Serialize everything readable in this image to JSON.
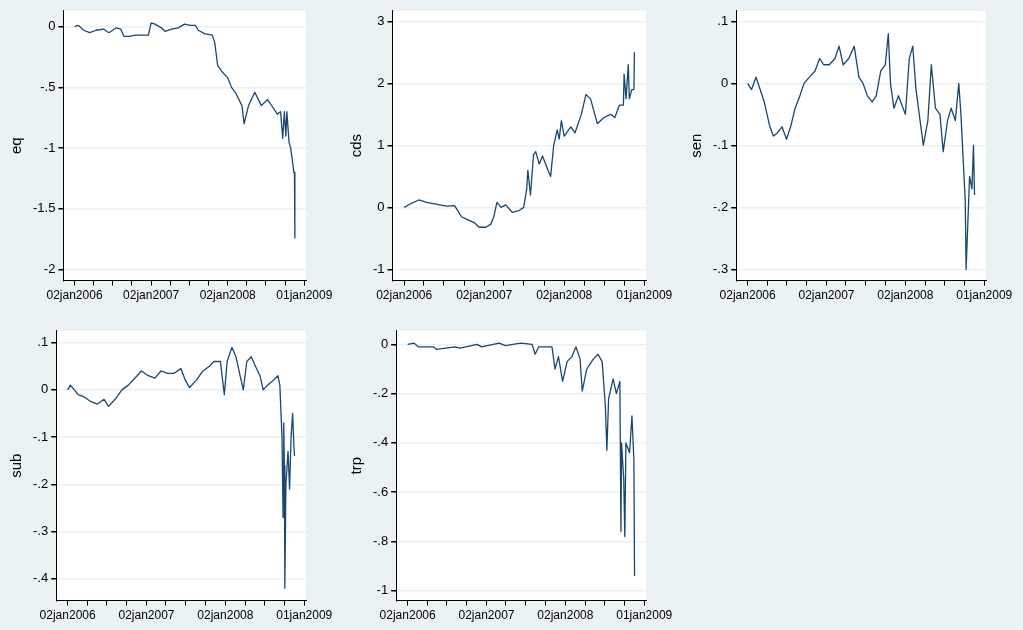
{
  "chart_data": [
    {
      "type": "line",
      "ylabel": "eq",
      "color": "#1a476f",
      "grid": "y",
      "xlim": [
        "2005-11-10",
        "2009-01-09"
      ],
      "xticks": [
        {
          "value": "2006-01-02",
          "label": "02jan2006"
        },
        {
          "value": "2006-04-02",
          "label": null
        },
        {
          "value": "2006-07-02",
          "label": null
        },
        {
          "value": "2006-10-02",
          "label": null
        },
        {
          "value": "2007-01-02",
          "label": "02jan2007"
        },
        {
          "value": "2007-04-02",
          "label": null
        },
        {
          "value": "2007-07-02",
          "label": null
        },
        {
          "value": "2007-10-02",
          "label": null
        },
        {
          "value": "2008-01-02",
          "label": "02jan2008"
        },
        {
          "value": "2008-04-02",
          "label": null
        },
        {
          "value": "2008-07-02",
          "label": null
        },
        {
          "value": "2008-10-02",
          "label": null
        },
        {
          "value": "2009-01-01",
          "label": "01jan2009"
        }
      ],
      "ylim": [
        -2.09,
        0.13
      ],
      "yticks": [
        -2,
        {
          "value": -1.5,
          "label": "-1.5"
        },
        -1,
        {
          "value": -0.5,
          "label": "-.5"
        },
        0
      ],
      "x": [
        "2006-01-02",
        "2006-01-20",
        "2006-02-15",
        "2006-03-15",
        "2006-04-15",
        "2006-05-20",
        "2006-06-15",
        "2006-07-20",
        "2006-08-10",
        "2006-08-25",
        "2006-09-20",
        "2006-10-20",
        "2006-11-20",
        "2006-12-20",
        "2007-01-02",
        "2007-01-20",
        "2007-02-20",
        "2007-03-10",
        "2007-04-10",
        "2007-05-10",
        "2007-06-10",
        "2007-07-10",
        "2007-08-01",
        "2007-08-15",
        "2007-09-15",
        "2007-10-20",
        "2007-11-01",
        "2007-11-15",
        "2007-12-10",
        "2008-01-02",
        "2008-01-20",
        "2008-02-10",
        "2008-03-10",
        "2008-03-20",
        "2008-04-10",
        "2008-05-10",
        "2008-06-10",
        "2008-07-10",
        "2008-08-10",
        "2008-08-25",
        "2008-09-10",
        "2008-09-20",
        "2008-09-28",
        "2008-10-05",
        "2008-10-10",
        "2008-10-20",
        "2008-10-28",
        "2008-11-05",
        "2008-11-12",
        "2008-11-15",
        "2008-11-17"
      ],
      "values": [
        0,
        0.01,
        -0.03,
        -0.05,
        -0.03,
        -0.02,
        -0.05,
        -0.01,
        -0.02,
        -0.08,
        -0.08,
        -0.07,
        -0.07,
        -0.07,
        0.03,
        0.02,
        -0.01,
        -0.04,
        -0.02,
        -0.01,
        0.02,
        0.01,
        0.01,
        -0.03,
        -0.06,
        -0.07,
        -0.13,
        -0.32,
        -0.38,
        -0.42,
        -0.5,
        -0.55,
        -0.65,
        -0.8,
        -0.65,
        -0.54,
        -0.65,
        -0.6,
        -0.68,
        -0.72,
        -0.7,
        -0.92,
        -0.7,
        -0.9,
        -0.7,
        -0.95,
        -1.0,
        -1.1,
        -1.2,
        -1.2,
        -1.74
      ]
    },
    {
      "type": "line",
      "ylabel": "cds",
      "color": "#1a476f",
      "grid": "y",
      "xlim": [
        "2005-11-10",
        "2009-01-09"
      ],
      "xticks": [
        {
          "value": "2006-01-02",
          "label": "02jan2006"
        },
        {
          "value": "2006-04-02",
          "label": null
        },
        {
          "value": "2006-07-02",
          "label": null
        },
        {
          "value": "2006-10-02",
          "label": null
        },
        {
          "value": "2007-01-02",
          "label": "02jan2007"
        },
        {
          "value": "2007-04-02",
          "label": null
        },
        {
          "value": "2007-07-02",
          "label": null
        },
        {
          "value": "2007-10-02",
          "label": null
        },
        {
          "value": "2008-01-02",
          "label": "02jan2008"
        },
        {
          "value": "2008-04-02",
          "label": null
        },
        {
          "value": "2008-07-02",
          "label": null
        },
        {
          "value": "2008-10-02",
          "label": null
        },
        {
          "value": "2009-01-01",
          "label": "01jan2009"
        }
      ],
      "ylim": [
        -1.18,
        3.17
      ],
      "yticks": [
        -1,
        0,
        1,
        2,
        3
      ],
      "x": [
        "2006-01-02",
        "2006-02-01",
        "2006-03-10",
        "2006-04-15",
        "2006-06-01",
        "2006-07-15",
        "2006-08-20",
        "2006-09-20",
        "2006-10-20",
        "2006-11-20",
        "2006-12-10",
        "2007-01-10",
        "2007-02-01",
        "2007-02-15",
        "2007-03-01",
        "2007-03-20",
        "2007-04-10",
        "2007-05-10",
        "2007-06-10",
        "2007-07-01",
        "2007-07-15",
        "2007-07-20",
        "2007-08-01",
        "2007-08-15",
        "2007-08-25",
        "2007-09-10",
        "2007-09-25",
        "2007-10-20",
        "2007-11-01",
        "2007-11-15",
        "2007-12-01",
        "2007-12-10",
        "2007-12-20",
        "2008-01-02",
        "2008-02-01",
        "2008-02-20",
        "2008-03-20",
        "2008-04-10",
        "2008-05-01",
        "2008-06-01",
        "2008-07-01",
        "2008-08-01",
        "2008-08-20",
        "2008-09-10",
        "2008-09-28",
        "2008-10-01",
        "2008-10-10",
        "2008-10-20",
        "2008-10-25",
        "2008-11-05",
        "2008-11-15",
        "2008-11-17"
      ],
      "values": [
        0,
        0.06,
        0.12,
        0.08,
        0.05,
        0.02,
        0.03,
        -0.15,
        -0.2,
        -0.25,
        -0.32,
        -0.32,
        -0.27,
        -0.15,
        0.08,
        0.0,
        0.04,
        -0.08,
        -0.05,
        0.0,
        0.3,
        0.6,
        0.2,
        0.85,
        0.9,
        0.7,
        0.83,
        0.6,
        0.5,
        1.0,
        1.25,
        1.1,
        1.4,
        1.15,
        1.3,
        1.2,
        1.5,
        1.82,
        1.75,
        1.35,
        1.45,
        1.5,
        1.45,
        1.65,
        1.65,
        2.15,
        1.75,
        2.3,
        1.75,
        1.9,
        1.9,
        2.5
      ]
    },
    {
      "type": "line",
      "ylabel": "sen",
      "color": "#1a476f",
      "grid": "y",
      "xlim": [
        "2005-11-10",
        "2009-01-09"
      ],
      "xticks": [
        {
          "value": "2006-01-02",
          "label": "02jan2006"
        },
        {
          "value": "2006-04-02",
          "label": null
        },
        {
          "value": "2006-07-02",
          "label": null
        },
        {
          "value": "2006-10-02",
          "label": null
        },
        {
          "value": "2007-01-02",
          "label": "02jan2007"
        },
        {
          "value": "2007-04-02",
          "label": null
        },
        {
          "value": "2007-07-02",
          "label": null
        },
        {
          "value": "2007-10-02",
          "label": null
        },
        {
          "value": "2008-01-02",
          "label": "02jan2008"
        },
        {
          "value": "2008-04-02",
          "label": null
        },
        {
          "value": "2008-07-02",
          "label": null
        },
        {
          "value": "2008-10-02",
          "label": null
        },
        {
          "value": "2009-01-01",
          "label": "01jan2009"
        }
      ],
      "ylim": [
        -0.318,
        0.117
      ],
      "yticks": [
        {
          "value": -0.3,
          "label": "-.3"
        },
        {
          "value": -0.2,
          "label": "-.2"
        },
        {
          "value": -0.1,
          "label": "-.1"
        },
        0,
        {
          "value": 0.1,
          "label": ".1"
        }
      ],
      "x": [
        "2006-01-02",
        "2006-01-20",
        "2006-02-10",
        "2006-03-01",
        "2006-03-20",
        "2006-04-15",
        "2006-05-01",
        "2006-05-20",
        "2006-06-10",
        "2006-07-01",
        "2006-07-20",
        "2006-08-10",
        "2006-09-01",
        "2006-09-20",
        "2006-10-15",
        "2006-11-10",
        "2006-12-01",
        "2006-12-20",
        "2007-01-15",
        "2007-02-10",
        "2007-03-01",
        "2007-03-20",
        "2007-04-15",
        "2007-05-10",
        "2007-06-01",
        "2007-06-20",
        "2007-07-10",
        "2007-08-01",
        "2007-08-20",
        "2007-09-10",
        "2007-10-01",
        "2007-10-15",
        "2007-10-25",
        "2007-11-10",
        "2007-12-01",
        "2008-01-02",
        "2008-01-20",
        "2008-02-05",
        "2008-02-20",
        "2008-03-10",
        "2008-03-25",
        "2008-04-15",
        "2008-05-01",
        "2008-05-20",
        "2008-06-10",
        "2008-06-25",
        "2008-07-15",
        "2008-08-01",
        "2008-08-20",
        "2008-09-05",
        "2008-09-15",
        "2008-09-25",
        "2008-10-05",
        "2008-10-09",
        "2008-10-25",
        "2008-11-05",
        "2008-11-12",
        "2008-11-17"
      ],
      "values": [
        0,
        -0.01,
        0.01,
        -0.01,
        -0.03,
        -0.07,
        -0.085,
        -0.08,
        -0.07,
        -0.09,
        -0.07,
        -0.04,
        -0.02,
        0.0,
        0.01,
        0.02,
        0.04,
        0.03,
        0.03,
        0.04,
        0.06,
        0.03,
        0.04,
        0.06,
        0.01,
        0.0,
        -0.02,
        -0.03,
        -0.02,
        0.02,
        0.03,
        0.08,
        0.0,
        -0.04,
        -0.02,
        -0.05,
        0.04,
        0.06,
        -0.01,
        -0.06,
        -0.1,
        -0.06,
        0.03,
        -0.04,
        -0.05,
        -0.11,
        -0.06,
        -0.04,
        -0.06,
        0.0,
        -0.05,
        -0.12,
        -0.19,
        -0.3,
        -0.15,
        -0.17,
        -0.1,
        -0.18
      ]
    },
    {
      "type": "line",
      "ylabel": "sub",
      "color": "#1a476f",
      "grid": "y",
      "xlim": [
        "2005-11-10",
        "2009-01-09"
      ],
      "xticks": [
        {
          "value": "2006-01-02",
          "label": "02jan2006"
        },
        {
          "value": "2006-04-02",
          "label": null
        },
        {
          "value": "2006-07-02",
          "label": null
        },
        {
          "value": "2006-10-02",
          "label": null
        },
        {
          "value": "2007-01-02",
          "label": "02jan2007"
        },
        {
          "value": "2007-04-02",
          "label": null
        },
        {
          "value": "2007-07-02",
          "label": null
        },
        {
          "value": "2007-10-02",
          "label": null
        },
        {
          "value": "2008-01-02",
          "label": "02jan2008"
        },
        {
          "value": "2008-04-02",
          "label": null
        },
        {
          "value": "2008-07-02",
          "label": null
        },
        {
          "value": "2008-10-02",
          "label": null
        },
        {
          "value": "2009-01-01",
          "label": "01jan2009"
        }
      ],
      "ylim": [
        -0.446,
        0.125
      ],
      "yticks": [
        {
          "value": -0.4,
          "label": "-.4"
        },
        {
          "value": -0.3,
          "label": "-.3"
        },
        {
          "value": -0.2,
          "label": "-.2"
        },
        {
          "value": -0.1,
          "label": "-.1"
        },
        0,
        {
          "value": 0.1,
          "label": ".1"
        }
      ],
      "x": [
        "2006-01-02",
        "2006-01-15",
        "2006-02-20",
        "2006-03-20",
        "2006-04-20",
        "2006-05-20",
        "2006-06-20",
        "2006-07-10",
        "2006-08-10",
        "2006-09-10",
        "2006-10-10",
        "2006-11-10",
        "2006-12-10",
        "2007-01-10",
        "2007-02-10",
        "2007-03-10",
        "2007-04-10",
        "2007-05-10",
        "2007-06-10",
        "2007-07-01",
        "2007-07-20",
        "2007-08-20",
        "2007-09-20",
        "2007-10-20",
        "2007-11-10",
        "2007-12-10",
        "2007-12-28",
        "2008-01-10",
        "2008-02-01",
        "2008-02-20",
        "2008-03-10",
        "2008-03-25",
        "2008-04-10",
        "2008-05-01",
        "2008-05-20",
        "2008-06-10",
        "2008-06-25",
        "2008-07-15",
        "2008-08-10",
        "2008-09-01",
        "2008-09-10",
        "2008-09-20",
        "2008-09-25",
        "2008-09-28",
        "2008-10-01",
        "2008-10-03",
        "2008-10-08",
        "2008-10-18",
        "2008-10-25",
        "2008-11-01",
        "2008-11-08",
        "2008-11-14",
        "2008-11-17"
      ],
      "values": [
        0,
        0.01,
        -0.01,
        -0.015,
        -0.025,
        -0.03,
        -0.02,
        -0.035,
        -0.02,
        0.0,
        0.01,
        0.025,
        0.04,
        0.03,
        0.025,
        0.04,
        0.035,
        0.035,
        0.045,
        0.02,
        0.005,
        0.02,
        0.04,
        0.05,
        0.06,
        0.06,
        -0.01,
        0.06,
        0.09,
        0.07,
        0.03,
        0.0,
        0.06,
        0.07,
        0.05,
        0.03,
        0.0,
        0.01,
        0.02,
        0.03,
        0.01,
        -0.1,
        -0.27,
        -0.07,
        -0.16,
        -0.42,
        -0.2,
        -0.13,
        -0.21,
        -0.1,
        -0.05,
        -0.12,
        -0.14
      ]
    },
    {
      "type": "line",
      "ylabel": "trp",
      "color": "#1a476f",
      "grid": "y",
      "xlim": [
        "2005-11-10",
        "2009-01-09"
      ],
      "xticks": [
        {
          "value": "2006-01-02",
          "label": "02jan2006"
        },
        {
          "value": "2006-04-02",
          "label": null
        },
        {
          "value": "2006-07-02",
          "label": null
        },
        {
          "value": "2006-10-02",
          "label": null
        },
        {
          "value": "2007-01-02",
          "label": "02jan2007"
        },
        {
          "value": "2007-04-02",
          "label": null
        },
        {
          "value": "2007-07-02",
          "label": null
        },
        {
          "value": "2007-10-02",
          "label": null
        },
        {
          "value": "2008-01-02",
          "label": "02jan2008"
        },
        {
          "value": "2008-04-02",
          "label": null
        },
        {
          "value": "2008-07-02",
          "label": null
        },
        {
          "value": "2008-10-02",
          "label": null
        },
        {
          "value": "2009-01-01",
          "label": "01jan2009"
        }
      ],
      "ylim": [
        -1.04,
        0.055
      ],
      "yticks": [
        -1,
        {
          "value": -0.8,
          "label": "-.8"
        },
        {
          "value": -0.6,
          "label": "-.6"
        },
        {
          "value": -0.4,
          "label": "-.4"
        },
        {
          "value": -0.2,
          "label": "-.2"
        },
        0
      ],
      "x": [
        "2006-01-02",
        "2006-02-01",
        "2006-02-20",
        "2006-05-01",
        "2006-05-15",
        "2006-08-10",
        "2006-09-01",
        "2006-11-20",
        "2006-12-10",
        "2007-03-01",
        "2007-04-01",
        "2007-06-10",
        "2007-08-01",
        "2007-08-15",
        "2007-09-01",
        "2007-11-01",
        "2007-11-15",
        "2007-12-01",
        "2007-12-20",
        "2008-01-10",
        "2008-02-01",
        "2008-02-20",
        "2008-03-10",
        "2008-03-20",
        "2008-04-10",
        "2008-05-10",
        "2008-06-01",
        "2008-06-20",
        "2008-07-05",
        "2008-07-12",
        "2008-07-20",
        "2008-08-10",
        "2008-08-25",
        "2008-09-10",
        "2008-09-15",
        "2008-09-18",
        "2008-09-28",
        "2008-10-03",
        "2008-10-08",
        "2008-10-25",
        "2008-11-05",
        "2008-11-14",
        "2008-11-17"
      ],
      "values": [
        0,
        0.005,
        -0.01,
        -0.01,
        -0.02,
        -0.01,
        -0.015,
        0.0,
        -0.01,
        0.005,
        -0.005,
        0.005,
        0.0,
        -0.04,
        -0.01,
        -0.01,
        -0.1,
        -0.05,
        -0.15,
        -0.07,
        -0.05,
        -0.01,
        -0.06,
        -0.19,
        -0.1,
        -0.06,
        -0.04,
        -0.07,
        -0.25,
        -0.43,
        -0.22,
        -0.14,
        -0.2,
        -0.15,
        -0.76,
        -0.4,
        -0.55,
        -0.78,
        -0.4,
        -0.44,
        -0.29,
        -0.47,
        -0.94
      ]
    }
  ]
}
